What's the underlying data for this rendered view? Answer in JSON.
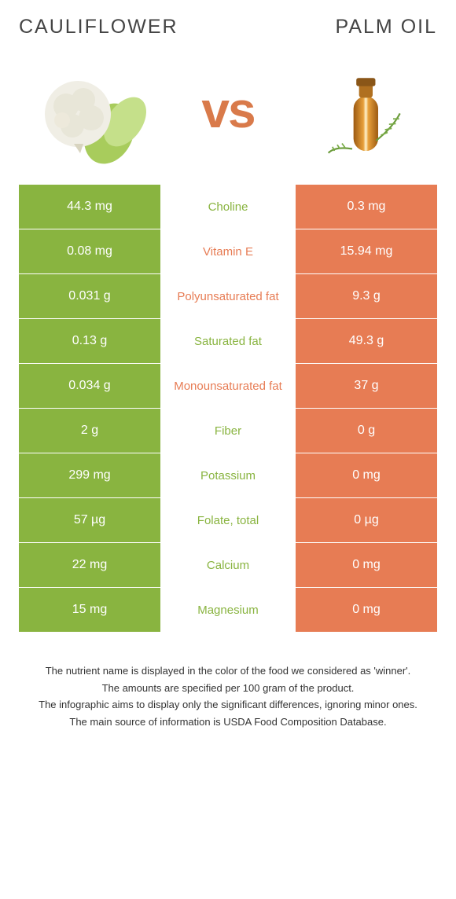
{
  "header": {
    "left_title": "Cauliflower",
    "right_title": "Palm oil",
    "vs_text": "vs"
  },
  "colors": {
    "left_bg": "#89b440",
    "right_bg": "#e77c54",
    "left_text": "#89b440",
    "right_text": "#e77c54",
    "vs_color": "#d97a4a"
  },
  "rows": [
    {
      "left": "44.3 mg",
      "label": "Choline",
      "right": "0.3 mg",
      "winner": "left"
    },
    {
      "left": "0.08 mg",
      "label": "Vitamin E",
      "right": "15.94 mg",
      "winner": "right"
    },
    {
      "left": "0.031 g",
      "label": "Polyunsaturated fat",
      "right": "9.3 g",
      "winner": "right"
    },
    {
      "left": "0.13 g",
      "label": "Saturated fat",
      "right": "49.3 g",
      "winner": "left"
    },
    {
      "left": "0.034 g",
      "label": "Monounsaturated fat",
      "right": "37 g",
      "winner": "right"
    },
    {
      "left": "2 g",
      "label": "Fiber",
      "right": "0 g",
      "winner": "left"
    },
    {
      "left": "299 mg",
      "label": "Potassium",
      "right": "0 mg",
      "winner": "left"
    },
    {
      "left": "57 µg",
      "label": "Folate, total",
      "right": "0 µg",
      "winner": "left"
    },
    {
      "left": "22 mg",
      "label": "Calcium",
      "right": "0 mg",
      "winner": "left"
    },
    {
      "left": "15 mg",
      "label": "Magnesium",
      "right": "0 mg",
      "winner": "left"
    }
  ],
  "footer": {
    "line1": "The nutrient name is displayed in the color of the food we considered as 'winner'.",
    "line2": "The amounts are specified per 100 gram of the product.",
    "line3": "The infographic aims to display only the significant differences, ignoring minor ones.",
    "line4": "The main source of information is USDA Food Composition Database."
  }
}
